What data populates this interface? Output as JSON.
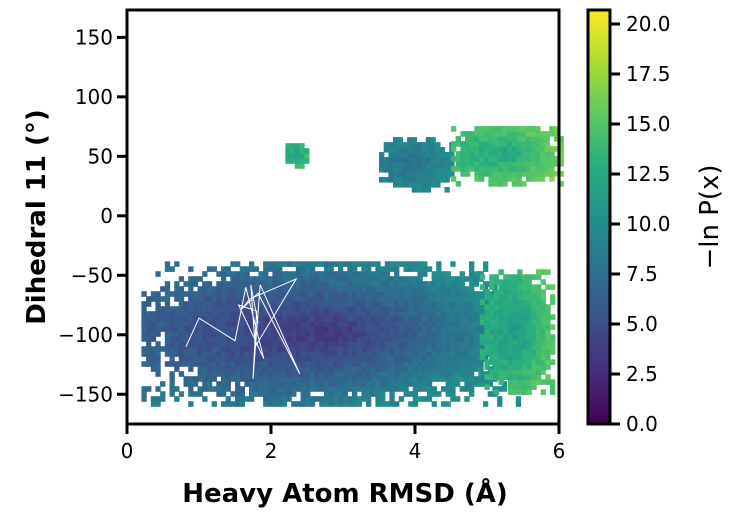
{
  "chart_data": {
    "type": "heatmap",
    "xlabel": "Heavy Atom RMSD (Å)",
    "ylabel": "Dihedral 11 (°)",
    "colorbar_label": "−ln P(x)",
    "colormap": "viridis",
    "xlim": [
      0,
      6
    ],
    "ylim": [
      -175,
      173
    ],
    "xticks": [
      0,
      2,
      4,
      6
    ],
    "xtick_labels": [
      "0",
      "2",
      "4",
      "6"
    ],
    "yticks": [
      -150,
      -100,
      -50,
      0,
      50,
      100,
      150
    ],
    "ytick_labels": [
      "−150",
      "−100",
      "−50",
      "0",
      "50",
      "100",
      "150"
    ],
    "clim": [
      0,
      20.7
    ],
    "cticks": [
      0,
      2.5,
      5,
      7.5,
      10,
      12.5,
      15,
      17.5,
      20
    ],
    "ctick_labels": [
      "0.0",
      "2.5",
      "5.0",
      "7.5",
      "10.0",
      "12.5",
      "15.0",
      "17.5",
      "20.0"
    ],
    "grid": false,
    "regions": [
      {
        "x_range": [
          0.2,
          5.5
        ],
        "y_range": [
          -160,
          -40
        ],
        "min_value": 1.0,
        "max_value": 10.0
      },
      {
        "x_range": [
          4.9,
          5.9
        ],
        "y_range": [
          -150,
          -45
        ],
        "min_value": 10.0,
        "max_value": 15.0
      },
      {
        "x_range": [
          3.5,
          4.5
        ],
        "y_range": [
          20,
          65
        ],
        "min_value": 7.0,
        "max_value": 10.0
      },
      {
        "x_range": [
          4.5,
          6.0
        ],
        "y_range": [
          25,
          75
        ],
        "min_value": 11.0,
        "max_value": 16.0
      },
      {
        "x_range": [
          2.2,
          2.5
        ],
        "y_range": [
          40,
          60
        ],
        "min_value": 11.0,
        "max_value": 14.0
      }
    ],
    "trajectory": {
      "color": "#ffffff",
      "points": [
        [
          0.82,
          -110
        ],
        [
          1.0,
          -86
        ],
        [
          1.5,
          -105
        ],
        [
          1.65,
          -60
        ],
        [
          1.9,
          -120
        ],
        [
          1.55,
          -75
        ],
        [
          1.8,
          -80
        ],
        [
          1.75,
          -137
        ],
        [
          1.85,
          -58
        ],
        [
          2.4,
          -133
        ],
        [
          1.82,
          -65
        ],
        [
          1.6,
          -78
        ],
        [
          1.7,
          -70
        ],
        [
          2.35,
          -53
        ],
        [
          1.78,
          -110
        ],
        [
          1.72,
          -58
        ],
        [
          1.82,
          -90
        ]
      ]
    }
  }
}
